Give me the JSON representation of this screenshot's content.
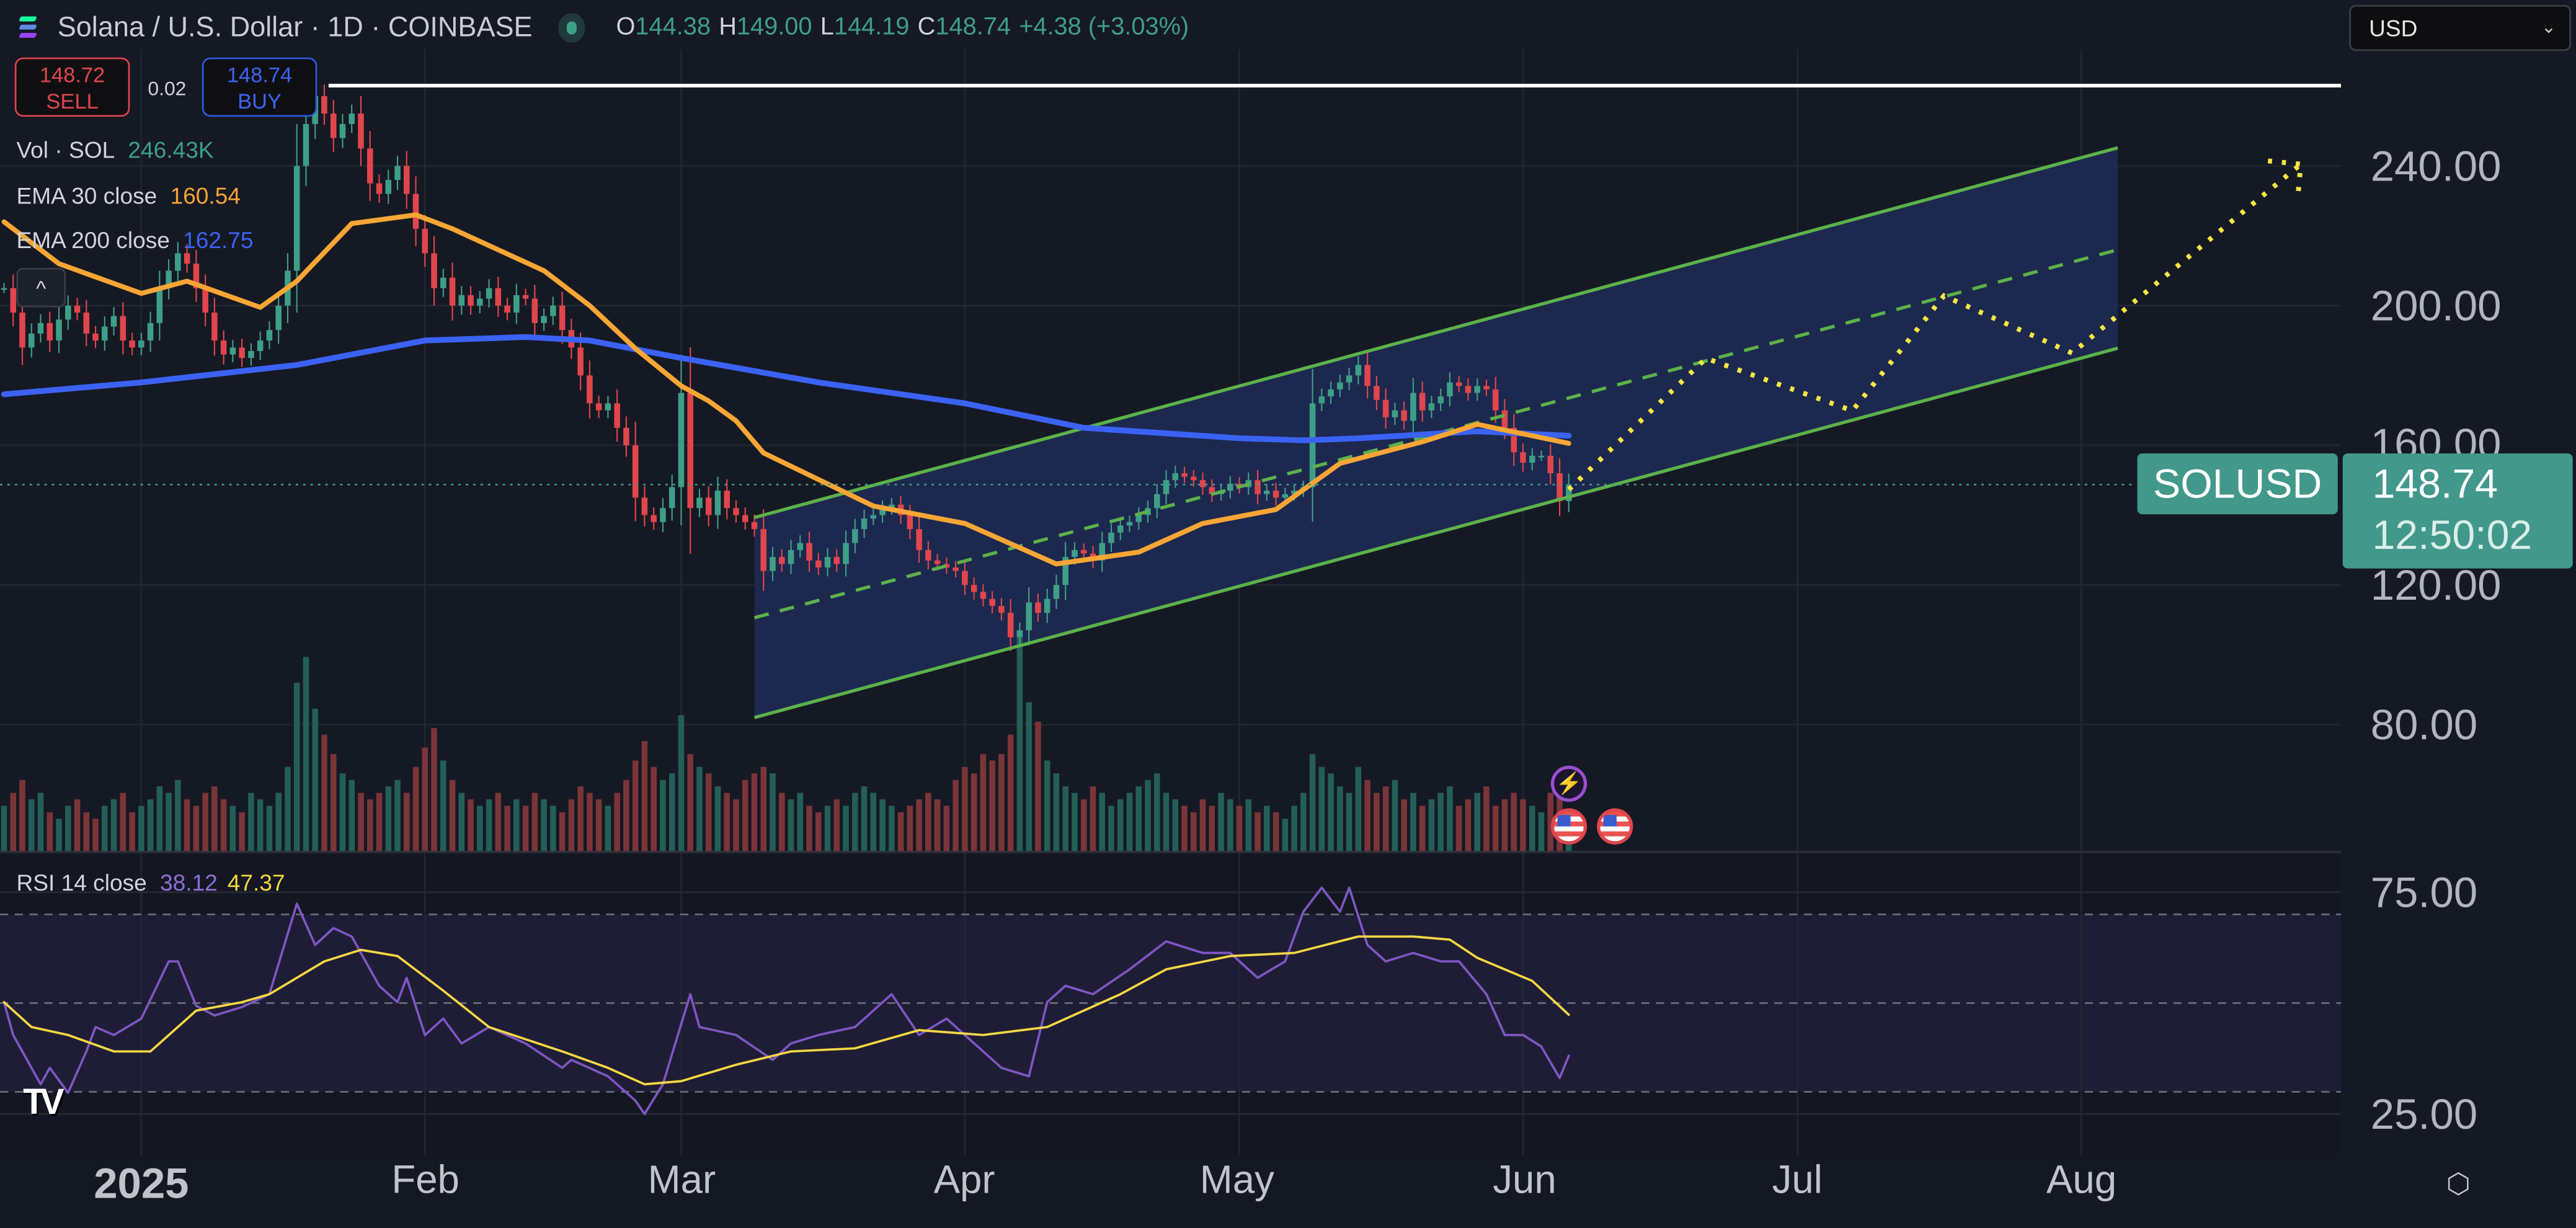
{
  "header": {
    "symbol_title": "Solana / U.S. Dollar · 1D · COINBASE",
    "ohlc": {
      "o_label": "O",
      "o": "144.38",
      "h_label": "H",
      "h": "149.00",
      "l_label": "L",
      "l": "144.19",
      "c_label": "C",
      "c": "148.74",
      "change": "+4.38 (+3.03%)"
    }
  },
  "trade": {
    "sell_price": "148.72",
    "sell_label": "SELL",
    "spread": "0.02",
    "buy_price": "148.74",
    "buy_label": "BUY"
  },
  "legend": {
    "vol_label": "Vol · SOL",
    "vol_value": "246.43K",
    "ema30_label": "EMA 30 close",
    "ema30_value": "160.54",
    "ema200_label": "EMA 200 close",
    "ema200_value": "162.75",
    "rsi_label": "RSI 14 close",
    "rsi_value": "38.12",
    "rsi_ma_value": "47.37"
  },
  "currency_select": {
    "value": "USD"
  },
  "price_axis": {
    "ticks": [
      "240.00",
      "200.00",
      "160.00",
      "120.00",
      "80.00"
    ]
  },
  "rsi_axis": {
    "ticks": [
      "75.00",
      "25.00"
    ]
  },
  "last_price": {
    "symbol": "SOLUSD",
    "price": "148.74",
    "countdown": "12:50:02"
  },
  "time_axis": {
    "labels": [
      "2025",
      "Feb",
      "Mar",
      "Apr",
      "May",
      "Jun",
      "Jul",
      "Aug"
    ]
  },
  "colors": {
    "up": "#3e9f87",
    "down": "#e0464c",
    "ema30": "#f7a534",
    "ema200": "#3a63f5",
    "rsi": "#7e57c2",
    "rsi_ma": "#f5d742",
    "channel": "#5cb24a",
    "projection": "#f5e642",
    "accent": "#42988a"
  },
  "icons": {
    "logo": "solana-logo",
    "bolt": "lightning-event-icon",
    "flag": "us-flag-event-icon",
    "settings": "settings-icon",
    "collapse": "chevron-up-icon",
    "brand": "tradingview-logo"
  },
  "chart_data": {
    "type": "candlestick",
    "date_range": [
      "2024-12-17",
      "2025-06-06"
    ],
    "closes": [
      205,
      198,
      188,
      192,
      195,
      190,
      196,
      200,
      198,
      192,
      190,
      194,
      197,
      190,
      188,
      190,
      195,
      205,
      210,
      215,
      212,
      205,
      198,
      190,
      186,
      188,
      185,
      187,
      190,
      193,
      200,
      210,
      240,
      252,
      260,
      255,
      248,
      252,
      255,
      245,
      235,
      232,
      236,
      240,
      232,
      222,
      215,
      205,
      208,
      200,
      203,
      200,
      202,
      205,
      200,
      198,
      203,
      202,
      195,
      197,
      200,
      193,
      188,
      180,
      172,
      170,
      172,
      165,
      160,
      145,
      140,
      138,
      142,
      148,
      175,
      142,
      145,
      140,
      147,
      142,
      140,
      138,
      136,
      124,
      128,
      126,
      130,
      132,
      127,
      125,
      128,
      126,
      132,
      136,
      139,
      140,
      142,
      143,
      140,
      136,
      130,
      127,
      126,
      125,
      124,
      120,
      118,
      116,
      114,
      112,
      105,
      107,
      115,
      112,
      116,
      120,
      128,
      130,
      129,
      127,
      132,
      135,
      137,
      138,
      140,
      142,
      146,
      150,
      152,
      151,
      150,
      148,
      146,
      147,
      149,
      148,
      150,
      146,
      147,
      145,
      146,
      147,
      148,
      172,
      174,
      176,
      178,
      180,
      183,
      177,
      173,
      168,
      170,
      167,
      175,
      170,
      172,
      174,
      178,
      177,
      175,
      177,
      176,
      170,
      165,
      158,
      155,
      157,
      157,
      152,
      144,
      148.74
    ],
    "volume_k": [
      700,
      900,
      1100,
      800,
      900,
      600,
      500,
      700,
      800,
      600,
      500,
      700,
      800,
      900,
      600,
      700,
      800,
      1000,
      900,
      1100,
      800,
      700,
      900,
      1000,
      800,
      700,
      600,
      900,
      800,
      700,
      900,
      1300,
      2600,
      3000,
      2200,
      1800,
      1500,
      1200,
      1100,
      900,
      800,
      900,
      1000,
      1100,
      900,
      1300,
      1600,
      1900,
      1400,
      1100,
      900,
      800,
      700,
      800,
      900,
      700,
      800,
      700,
      900,
      800,
      700,
      600,
      800,
      1000,
      900,
      800,
      700,
      900,
      1100,
      1400,
      1700,
      1300,
      1100,
      1200,
      2100,
      1500,
      1300,
      1200,
      1000,
      900,
      800,
      1100,
      1200,
      1300,
      1200,
      900,
      800,
      900,
      700,
      600,
      700,
      800,
      700,
      900,
      1000,
      900,
      800,
      700,
      600,
      700,
      800,
      900,
      800,
      700,
      1100,
      1300,
      1200,
      1500,
      1400,
      1500,
      1800,
      3300,
      2300,
      2000,
      1400,
      1200,
      1000,
      900,
      800,
      1000,
      900,
      700,
      800,
      900,
      1000,
      1100,
      1200,
      900,
      800,
      700,
      600,
      800,
      700,
      900,
      800,
      700,
      800,
      600,
      700,
      600,
      500,
      700,
      900,
      1500,
      1300,
      1200,
      1000,
      900,
      1300,
      1100,
      900,
      1000,
      1100,
      800,
      900,
      700,
      800,
      900,
      1000,
      700,
      800,
      900,
      1000,
      700,
      800,
      900,
      800,
      700,
      600,
      900,
      900,
      246.43
    ],
    "ema30": [
      [
        "2024-12-17",
        224
      ],
      [
        "2024-12-23",
        212
      ],
      [
        "2025-01-01",
        203.5
      ],
      [
        "2025-01-06",
        207
      ],
      [
        "2025-01-14",
        199.5
      ],
      [
        "2025-01-18",
        207
      ],
      [
        "2025-01-24",
        223.5
      ],
      [
        "2025-01-31",
        226
      ],
      [
        "2025-02-04",
        222
      ],
      [
        "2025-02-14",
        210
      ],
      [
        "2025-02-19",
        200
      ],
      [
        "2025-02-24",
        187.7
      ],
      [
        "2025-03-01",
        177
      ],
      [
        "2025-03-04",
        172.7
      ],
      [
        "2025-03-07",
        167
      ],
      [
        "2025-03-10",
        157.8
      ],
      [
        "2025-03-22",
        142.6
      ],
      [
        "2025-04-01",
        137.6
      ],
      [
        "2025-04-11",
        126
      ],
      [
        "2025-04-20",
        129.4
      ],
      [
        "2025-04-27",
        137.6
      ],
      [
        "2025-05-05",
        141.6
      ],
      [
        "2025-05-12",
        154.8
      ],
      [
        "2025-05-21",
        161
      ],
      [
        "2025-05-27",
        166
      ],
      [
        "2025-06-06",
        160.54
      ]
    ],
    "ema200": [
      [
        "2024-12-17",
        174.6
      ],
      [
        "2025-01-01",
        178
      ],
      [
        "2025-01-18",
        183
      ],
      [
        "2025-02-01",
        190
      ],
      [
        "2025-02-12",
        191
      ],
      [
        "2025-02-19",
        190
      ],
      [
        "2025-03-01",
        185
      ],
      [
        "2025-03-16",
        178
      ],
      [
        "2025-04-01",
        172
      ],
      [
        "2025-04-14",
        165
      ],
      [
        "2025-05-01",
        162
      ],
      [
        "2025-05-08",
        161.4
      ],
      [
        "2025-05-14",
        162
      ],
      [
        "2025-05-27",
        164
      ],
      [
        "2025-06-06",
        162.75
      ]
    ],
    "rsi": [
      [
        "2024-12-17",
        50.2
      ],
      [
        "2024-12-18",
        42.8
      ],
      [
        "2024-12-21",
        31.7
      ],
      [
        "2024-12-22",
        35.4
      ],
      [
        "2024-12-24",
        29.8
      ],
      [
        "2024-12-26",
        39.1
      ],
      [
        "2024-12-27",
        44.6
      ],
      [
        "2024-12-29",
        42.8
      ],
      [
        "2025-01-01",
        46.5
      ],
      [
        "2025-01-04",
        59.4
      ],
      [
        "2025-01-05",
        59.4
      ],
      [
        "2025-01-07",
        49.4
      ],
      [
        "2025-01-09",
        47.2
      ],
      [
        "2025-01-12",
        49.1
      ],
      [
        "2025-01-15",
        52
      ],
      [
        "2025-01-18",
        72.4
      ],
      [
        "2025-01-20",
        63.1
      ],
      [
        "2025-01-22",
        66.9
      ],
      [
        "2025-01-24",
        65
      ],
      [
        "2025-01-27",
        53.9
      ],
      [
        "2025-01-29",
        50.2
      ],
      [
        "2025-01-30",
        55.7
      ],
      [
        "2025-02-01",
        42.8
      ],
      [
        "2025-02-03",
        46.5
      ],
      [
        "2025-02-05",
        40.9
      ],
      [
        "2025-02-08",
        44.6
      ],
      [
        "2025-02-12",
        40.9
      ],
      [
        "2025-02-16",
        35.4
      ],
      [
        "2025-02-17",
        37.2
      ],
      [
        "2025-02-21",
        33.5
      ],
      [
        "2025-02-24",
        28
      ],
      [
        "2025-02-25",
        25
      ],
      [
        "2025-02-27",
        31.7
      ],
      [
        "2025-03-02",
        52
      ],
      [
        "2025-03-03",
        44.6
      ],
      [
        "2025-03-07",
        42.8
      ],
      [
        "2025-03-11",
        37.2
      ],
      [
        "2025-03-13",
        40.9
      ],
      [
        "2025-03-16",
        42.8
      ],
      [
        "2025-03-20",
        44.6
      ],
      [
        "2025-03-24",
        52
      ],
      [
        "2025-03-27",
        42.8
      ],
      [
        "2025-03-30",
        46.5
      ],
      [
        "2025-04-03",
        39.1
      ],
      [
        "2025-04-05",
        35.4
      ],
      [
        "2025-04-08",
        33.5
      ],
      [
        "2025-04-10",
        50.2
      ],
      [
        "2025-04-12",
        53.9
      ],
      [
        "2025-04-15",
        52
      ],
      [
        "2025-04-19",
        57.6
      ],
      [
        "2025-04-23",
        63.9
      ],
      [
        "2025-04-27",
        61.3
      ],
      [
        "2025-04-30",
        61.3
      ],
      [
        "2025-05-03",
        55.7
      ],
      [
        "2025-05-06",
        59.4
      ],
      [
        "2025-05-08",
        70.6
      ],
      [
        "2025-05-10",
        76
      ],
      [
        "2025-05-12",
        70.6
      ],
      [
        "2025-05-13",
        76
      ],
      [
        "2025-05-15",
        63.1
      ],
      [
        "2025-05-17",
        59.4
      ],
      [
        "2025-05-20",
        61.3
      ],
      [
        "2025-05-23",
        59.4
      ],
      [
        "2025-05-25",
        59.4
      ],
      [
        "2025-05-28",
        52
      ],
      [
        "2025-05-30",
        42.8
      ],
      [
        "2025-06-01",
        42.8
      ],
      [
        "2025-06-03",
        40.2
      ],
      [
        "2025-06-05",
        33.1
      ],
      [
        "2025-06-06",
        38.12
      ]
    ],
    "rsi_ma": [
      [
        "2024-12-17",
        50.2
      ],
      [
        "2024-12-20",
        44.6
      ],
      [
        "2024-12-24",
        42.8
      ],
      [
        "2024-12-29",
        39.1
      ],
      [
        "2025-01-02",
        39.1
      ],
      [
        "2025-01-07",
        48.3
      ],
      [
        "2025-01-12",
        50.2
      ],
      [
        "2025-01-15",
        52
      ],
      [
        "2025-01-21",
        59.4
      ],
      [
        "2025-01-25",
        62
      ],
      [
        "2025-01-29",
        60.6
      ],
      [
        "2025-02-03",
        52.8
      ],
      [
        "2025-02-08",
        44.6
      ],
      [
        "2025-02-16",
        39.1
      ],
      [
        "2025-02-21",
        35.4
      ],
      [
        "2025-02-25",
        31.7
      ],
      [
        "2025-03-01",
        32.4
      ],
      [
        "2025-03-07",
        36.1
      ],
      [
        "2025-03-13",
        39.1
      ],
      [
        "2025-03-20",
        39.8
      ],
      [
        "2025-03-27",
        43.9
      ],
      [
        "2025-04-03",
        42.8
      ],
      [
        "2025-04-10",
        44.6
      ],
      [
        "2025-04-18",
        52
      ],
      [
        "2025-04-23",
        57.6
      ],
      [
        "2025-04-30",
        60.6
      ],
      [
        "2025-05-07",
        61.3
      ],
      [
        "2025-05-14",
        65
      ],
      [
        "2025-05-20",
        65
      ],
      [
        "2025-05-24",
        64.3
      ],
      [
        "2025-05-27",
        60.2
      ],
      [
        "2025-06-02",
        55
      ],
      [
        "2025-06-06",
        47.37
      ]
    ],
    "rsi_levels": [
      70,
      50,
      30
    ],
    "channel": {
      "upper": [
        [
          "2025-03-09",
          139.3
        ],
        [
          "2025-08-05",
          245.2
        ]
      ],
      "middle": [
        [
          "2025-03-09",
          110.6
        ],
        [
          "2025-08-05",
          216
        ]
      ],
      "lower": [
        [
          "2025-03-09",
          82
        ],
        [
          "2025-08-05",
          187.8
        ]
      ]
    },
    "projection": [
      [
        "2025-06-06",
        147.3
      ],
      [
        "2025-06-21",
        184.9
      ],
      [
        "2025-07-07",
        169.9
      ],
      [
        "2025-07-17",
        202.8
      ],
      [
        "2025-07-31",
        186.4
      ],
      [
        "2025-08-25",
        240.5
      ]
    ],
    "horizontal_level": 263,
    "ylim": [
      60,
      290
    ],
    "rsi_ylim": [
      20,
      80
    ],
    "grid": true
  }
}
